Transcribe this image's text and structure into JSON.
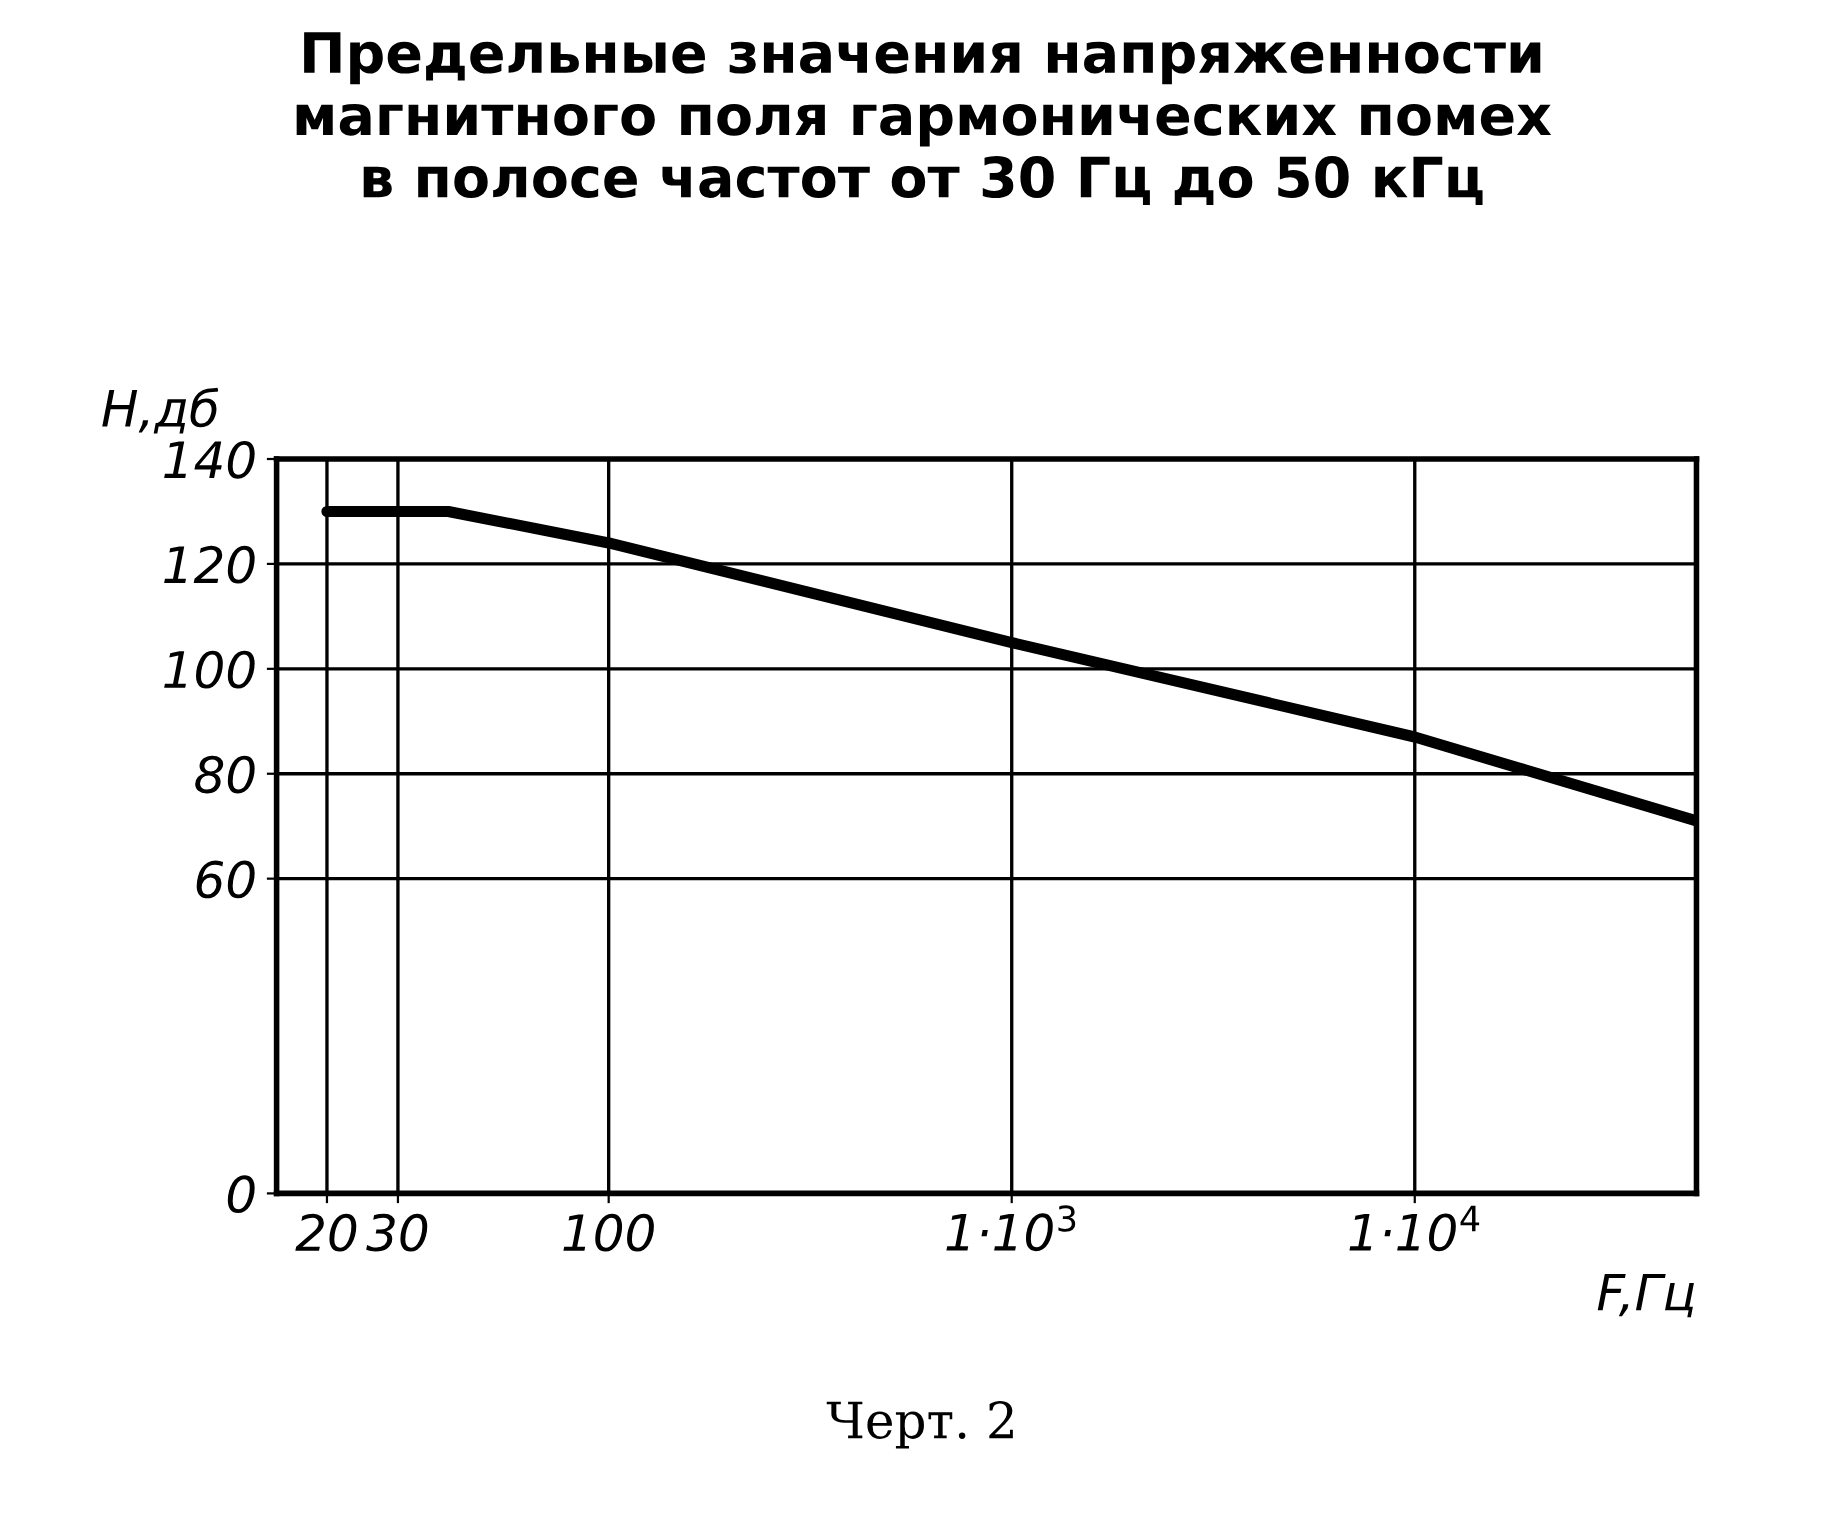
{
  "chart_data": {
    "type": "line",
    "title": "Предельные значения напряженности\nмагнитного поля гармонических помех\nв полосе частот от 30 Гц до 50 кГц",
    "xlabel": "F,Гц",
    "ylabel": "H,дб",
    "log": "x",
    "series": [
      {
        "color": "#000000",
        "x": [
          20,
          40,
          100,
          1000,
          10000,
          50000
        ],
        "values": [
          130,
          130,
          124,
          105,
          87,
          71
        ]
      }
    ],
    "xlim": [
      15,
      50000
    ],
    "ylim": [
      0,
      140
    ],
    "xticks": [
      20,
      30,
      100,
      {
        "value": 1000,
        "label": "1·10$^{3}$"
      },
      {
        "value": 10000,
        "label": "1·10$^{4}$"
      }
    ],
    "yticks": [
      0,
      60,
      80,
      100,
      120,
      140
    ],
    "grid": true,
    "marker": "none",
    "line_style": "solid",
    "annotations": [
      "Черт. 2"
    ]
  }
}
